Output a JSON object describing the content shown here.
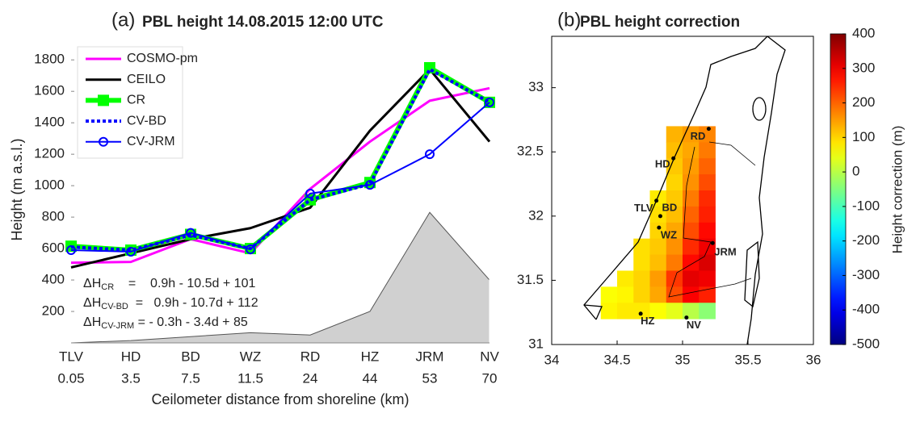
{
  "chart_data": [
    {
      "type": "line",
      "panel_label": "(a)",
      "title": "PBL height 14.08.2015 12:00 UTC",
      "ylabel": "Height (m a.s.l.)",
      "xlabel": "Ceilometer distance from shoreline (km)",
      "categories": [
        "TLV",
        "HD",
        "BD",
        "WZ",
        "RD",
        "HZ",
        "JRM",
        "NV"
      ],
      "distances": [
        0.05,
        3.5,
        7.5,
        11.5,
        24,
        44,
        53,
        70
      ],
      "ylim": [
        0,
        1950
      ],
      "yticks": [
        200,
        400,
        600,
        800,
        1000,
        1200,
        1400,
        1600,
        1800
      ],
      "terrain": {
        "color": "#d0d0d0",
        "values": [
          0,
          15,
          40,
          65,
          50,
          200,
          830,
          400
        ]
      },
      "series": [
        {
          "name": "COSMO-pm",
          "color": "#ff00ff",
          "width": 3,
          "values": [
            510,
            515,
            660,
            570,
            980,
            1280,
            1540,
            1620
          ]
        },
        {
          "name": "CEILO",
          "color": "#000000",
          "width": 3,
          "values": [
            480,
            570,
            660,
            730,
            860,
            1350,
            1740,
            1280
          ]
        },
        {
          "name": "CR",
          "color": "#00ff00",
          "width": 6,
          "marker": "square",
          "values": [
            615,
            590,
            690,
            600,
            910,
            1020,
            1750,
            1530
          ]
        },
        {
          "name": "CV-BD",
          "color": "#0000ff",
          "width": 4,
          "dash": "dotted",
          "values": [
            610,
            590,
            685,
            600,
            910,
            1010,
            1740,
            1530
          ]
        },
        {
          "name": "CV-JRM",
          "color": "#0000ff",
          "width": 2,
          "marker": "circle",
          "values": [
            590,
            580,
            700,
            595,
            950,
            1005,
            1200,
            1530
          ]
        }
      ],
      "annotations": [
        {
          "text": "ΔH",
          "sub": "CR",
          "rest": "    =    0.9h - 10.5d + 101"
        },
        {
          "text": "ΔH",
          "sub": "CV-BD",
          "rest": "  =   0.9h - 10.7d + 112"
        },
        {
          "text": "ΔH",
          "sub": "CV-JRM",
          "rest": " = - 0.3h - 3.4d + 85"
        }
      ]
    },
    {
      "type": "heatmap",
      "panel_label": "(b)",
      "title": "PBL height correction",
      "colorbar_label": "Height correction (m)",
      "clim": [
        -500,
        400
      ],
      "cticks": [
        -500,
        -400,
        -300,
        -200,
        -100,
        0,
        100,
        200,
        300,
        400
      ],
      "xlim": [
        34,
        36
      ],
      "xticks": [
        34,
        34.5,
        35,
        35.5,
        36
      ],
      "ylim": [
        31,
        33.4
      ],
      "yticks": [
        31,
        31.5,
        32,
        32.5,
        33
      ],
      "lon_edges": [
        34.25,
        34.375,
        34.5,
        34.625,
        34.75,
        34.875,
        35,
        35.125,
        35.25
      ],
      "lat_edges": [
        32.7,
        32.575,
        32.45,
        32.325,
        32.2,
        32.075,
        31.95,
        31.825,
        31.7,
        31.575,
        31.45,
        31.325,
        31.2
      ],
      "values": [
        [
          null,
          null,
          null,
          null,
          null,
          130,
          150,
          170
        ],
        [
          null,
          null,
          null,
          null,
          null,
          120,
          140,
          180
        ],
        [
          null,
          null,
          null,
          null,
          null,
          110,
          150,
          200
        ],
        [
          null,
          null,
          null,
          null,
          null,
          100,
          160,
          220
        ],
        [
          null,
          null,
          null,
          null,
          80,
          110,
          180,
          250
        ],
        [
          null,
          null,
          null,
          null,
          90,
          120,
          200,
          260
        ],
        [
          null,
          null,
          null,
          null,
          100,
          140,
          220,
          280
        ],
        [
          null,
          null,
          null,
          90,
          110,
          160,
          250,
          300
        ],
        [
          null,
          null,
          null,
          90,
          120,
          180,
          280,
          320
        ],
        [
          null,
          null,
          80,
          100,
          150,
          240,
          310,
          300
        ],
        [
          null,
          60,
          70,
          100,
          140,
          220,
          290,
          260
        ],
        [
          null,
          70,
          80,
          80,
          60,
          40,
          0,
          -40
        ]
      ],
      "stations": [
        {
          "name": "RD",
          "lon": 35.2,
          "lat": 32.68
        },
        {
          "name": "HD",
          "lon": 34.93,
          "lat": 32.45
        },
        {
          "name": "TLV",
          "lon": 34.8,
          "lat": 32.12
        },
        {
          "name": "BD",
          "lon": 34.83,
          "lat": 32.0
        },
        {
          "name": "WZ",
          "lon": 34.82,
          "lat": 31.91
        },
        {
          "name": "JRM",
          "lon": 35.23,
          "lat": 31.79
        },
        {
          "name": "HZ",
          "lon": 34.68,
          "lat": 31.24
        },
        {
          "name": "NV",
          "lon": 35.03,
          "lat": 31.21
        }
      ]
    }
  ]
}
